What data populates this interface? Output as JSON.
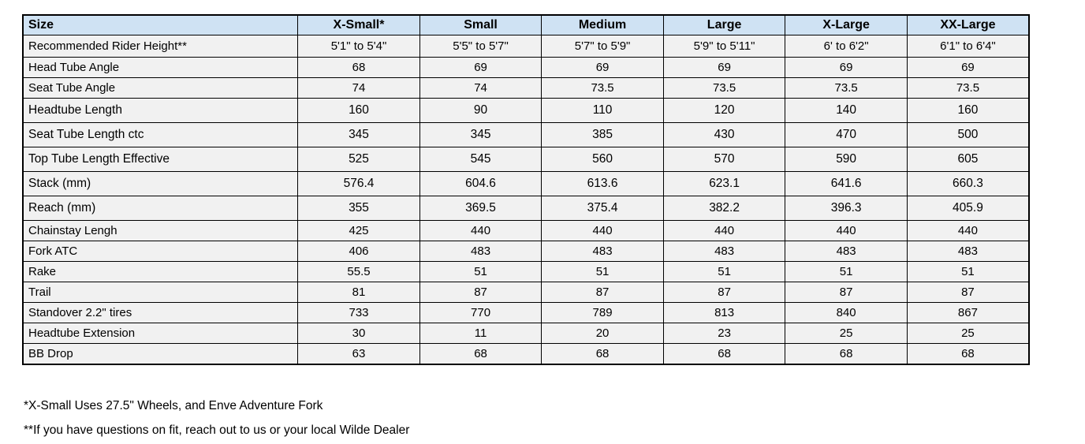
{
  "chart_data": {
    "type": "table",
    "columns": [
      "Size",
      "X-Small*",
      "Small",
      "Medium",
      "Large",
      "X-Large",
      "XX-Large"
    ],
    "rows": [
      {
        "label": "Recommended Rider Height**",
        "values": [
          "5'1\" to 5'4\"",
          "5'5\" to 5'7\"",
          "5'7\" to 5'9\"",
          "5'9\" to 5'11\"",
          "6' to 6'2\"",
          "6'1\" to 6'4\""
        ]
      },
      {
        "label": "Head Tube Angle",
        "values": [
          "68",
          "69",
          "69",
          "69",
          "69",
          "69"
        ]
      },
      {
        "label": "Seat Tube Angle",
        "values": [
          "74",
          "74",
          "73.5",
          "73.5",
          "73.5",
          "73.5"
        ]
      },
      {
        "label": "Headtube Length",
        "values": [
          "160",
          "90",
          "110",
          "120",
          "140",
          "160"
        ]
      },
      {
        "label": "Seat Tube Length ctc",
        "values": [
          "345",
          "345",
          "385",
          "430",
          "470",
          "500"
        ]
      },
      {
        "label": "Top Tube Length Effective",
        "values": [
          "525",
          "545",
          "560",
          "570",
          "590",
          "605"
        ]
      },
      {
        "label": "Stack (mm)",
        "values": [
          "576.4",
          "604.6",
          "613.6",
          "623.1",
          "641.6",
          "660.3"
        ]
      },
      {
        "label": "Reach (mm)",
        "values": [
          "355",
          "369.5",
          "375.4",
          "382.2",
          "396.3",
          "405.9"
        ]
      },
      {
        "label": "Chainstay Lengh",
        "values": [
          "425",
          "440",
          "440",
          "440",
          "440",
          "440"
        ]
      },
      {
        "label": "Fork ATC",
        "values": [
          "406",
          "483",
          "483",
          "483",
          "483",
          "483"
        ]
      },
      {
        "label": "Rake",
        "values": [
          "55.5",
          "51",
          "51",
          "51",
          "51",
          "51"
        ]
      },
      {
        "label": "Trail",
        "values": [
          "81",
          "87",
          "87",
          "87",
          "87",
          "87"
        ]
      },
      {
        "label": "Standover 2.2\" tires",
        "values": [
          "733",
          "770",
          "789",
          "813",
          "840",
          "867"
        ]
      },
      {
        "label": "Headtube Extension",
        "values": [
          "30",
          "11",
          "20",
          "23",
          "25",
          "25"
        ]
      },
      {
        "label": "BB Drop",
        "values": [
          "63",
          "68",
          "68",
          "68",
          "68",
          "68"
        ]
      }
    ],
    "layout": {
      "grid": "on",
      "header_position": "top"
    }
  },
  "notes": [
    "*X-Small Uses 27.5\" Wheels, and Enve Adventure Fork",
    "**If you have questions on fit, reach out to us or your local Wilde Dealer"
  ],
  "colors": {
    "header_bg": "#cfe2f3",
    "cell_bg": "#f1f1f1",
    "border": "#000000",
    "text": "#000000"
  }
}
